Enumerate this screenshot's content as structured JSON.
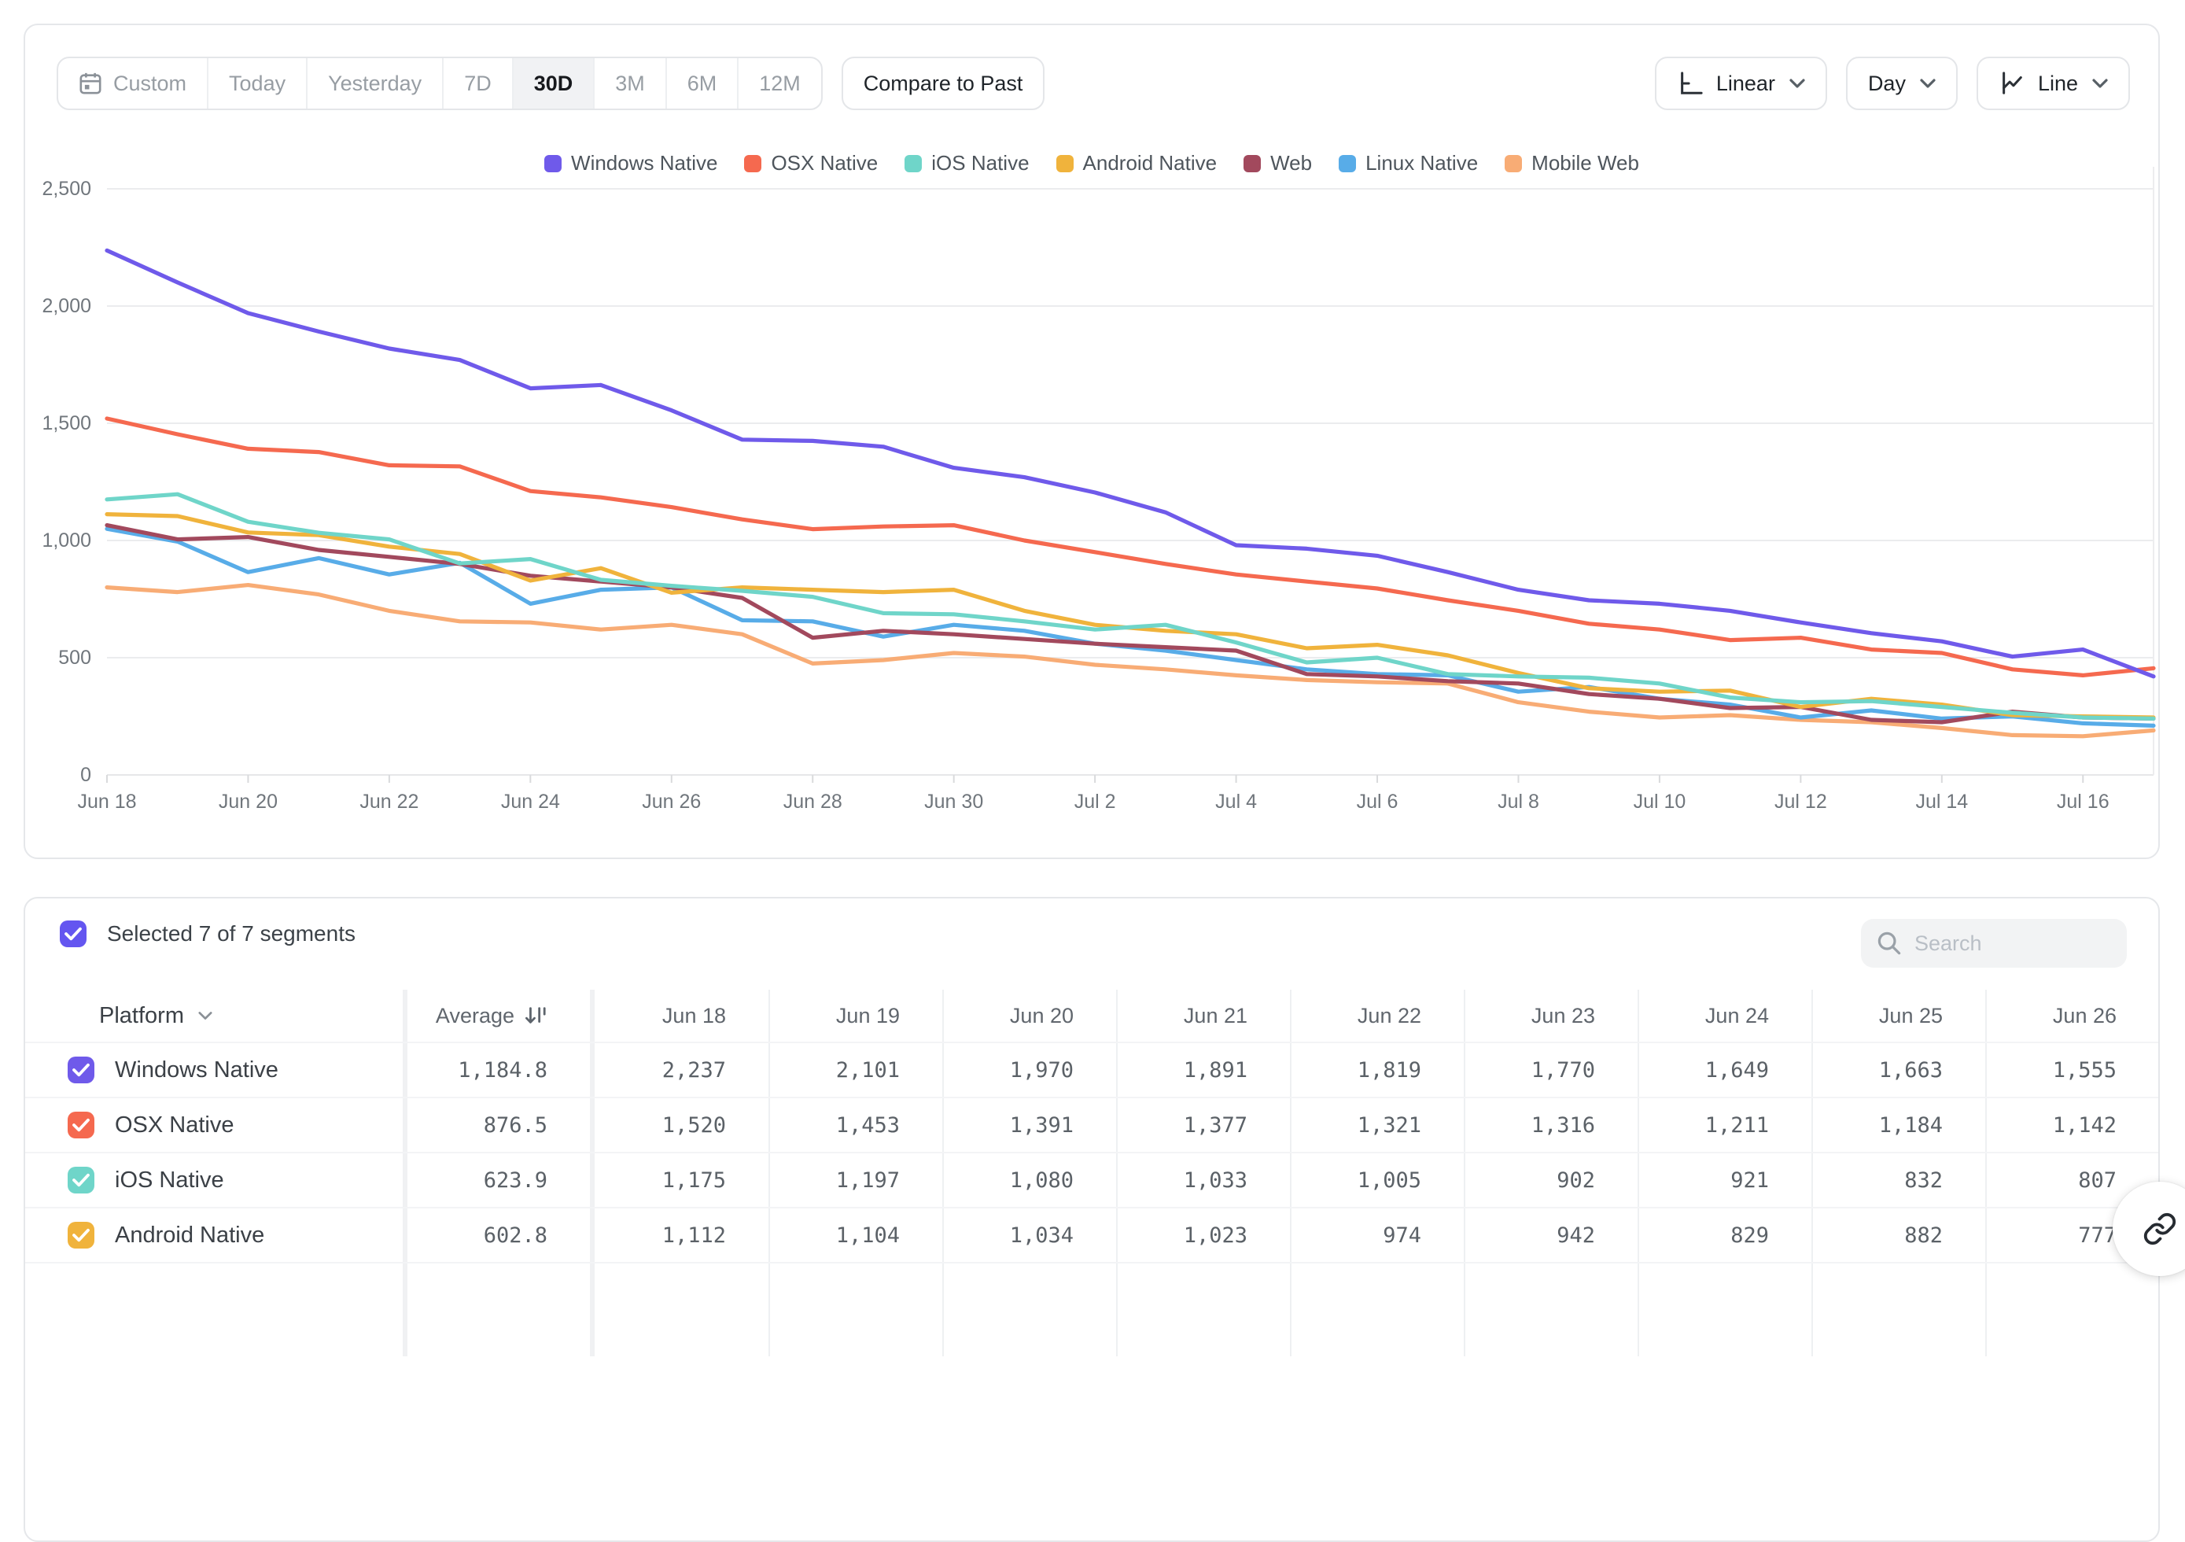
{
  "toolbar": {
    "date_ranges": [
      "Custom",
      "Today",
      "Yesterday",
      "7D",
      "30D",
      "3M",
      "6M",
      "12M"
    ],
    "selected_range": "30D",
    "compare_label": "Compare to Past",
    "scale_label": "Linear",
    "interval_label": "Day",
    "chart_type_label": "Line"
  },
  "chart_data": {
    "type": "line",
    "title": "",
    "xlabel": "",
    "ylabel": "",
    "ylim": [
      0,
      2500
    ],
    "grid": true,
    "legend_position": "top",
    "x": [
      "Jun 18",
      "Jun 19",
      "Jun 20",
      "Jun 21",
      "Jun 22",
      "Jun 23",
      "Jun 24",
      "Jun 25",
      "Jun 26",
      "Jun 27",
      "Jun 28",
      "Jun 29",
      "Jun 30",
      "Jul 1",
      "Jul 2",
      "Jul 3",
      "Jul 4",
      "Jul 5",
      "Jul 6",
      "Jul 7",
      "Jul 8",
      "Jul 9",
      "Jul 10",
      "Jul 11",
      "Jul 12",
      "Jul 13",
      "Jul 14",
      "Jul 15",
      "Jul 16",
      "Jul 17"
    ],
    "x_tick_step": 2,
    "y_ticks": [
      {
        "v": 0,
        "label": "0"
      },
      {
        "v": 500,
        "label": "500"
      },
      {
        "v": 1000,
        "label": "1,000"
      },
      {
        "v": 1500,
        "label": "1,500"
      },
      {
        "v": 2000,
        "label": "2,000"
      },
      {
        "v": 2500,
        "label": "2,500"
      }
    ],
    "series": [
      {
        "name": "Windows Native",
        "color": "#6F5AEA",
        "values": [
          2237,
          2101,
          1970,
          1891,
          1819,
          1770,
          1649,
          1663,
          1555,
          1430,
          1425,
          1400,
          1310,
          1270,
          1205,
          1120,
          980,
          965,
          935,
          865,
          790,
          745,
          730,
          700,
          650,
          605,
          570,
          505,
          535,
          420
        ]
      },
      {
        "name": "OSX Native",
        "color": "#F5694F",
        "values": [
          1520,
          1453,
          1391,
          1377,
          1321,
          1316,
          1211,
          1184,
          1142,
          1090,
          1048,
          1060,
          1065,
          1000,
          950,
          900,
          855,
          825,
          795,
          745,
          700,
          645,
          620,
          575,
          585,
          535,
          520,
          450,
          425,
          455
        ]
      },
      {
        "name": "iOS Native",
        "color": "#6FD5C9",
        "values": [
          1175,
          1197,
          1080,
          1033,
          1005,
          902,
          921,
          832,
          807,
          785,
          760,
          690,
          685,
          655,
          620,
          640,
          565,
          480,
          500,
          430,
          420,
          415,
          390,
          330,
          310,
          315,
          290,
          265,
          245,
          240
        ]
      },
      {
        "name": "Android Native",
        "color": "#F0B33C",
        "values": [
          1112,
          1104,
          1034,
          1023,
          974,
          942,
          829,
          882,
          777,
          800,
          790,
          780,
          790,
          700,
          640,
          615,
          600,
          540,
          555,
          510,
          435,
          370,
          355,
          360,
          290,
          325,
          300,
          255,
          250,
          245
        ]
      },
      {
        "name": "Web",
        "color": "#A2495D",
        "values": [
          1065,
          1005,
          1015,
          960,
          930,
          900,
          850,
          825,
          800,
          755,
          585,
          615,
          600,
          580,
          560,
          545,
          530,
          430,
          420,
          400,
          390,
          345,
          325,
          285,
          290,
          235,
          225,
          270,
          245,
          240
        ]
      },
      {
        "name": "Linux Native",
        "color": "#58ACE8",
        "values": [
          1050,
          995,
          865,
          925,
          855,
          905,
          730,
          790,
          800,
          660,
          655,
          590,
          640,
          615,
          560,
          530,
          490,
          450,
          430,
          425,
          355,
          375,
          325,
          300,
          245,
          275,
          240,
          250,
          220,
          210
        ]
      },
      {
        "name": "Mobile Web",
        "color": "#F8AC75",
        "values": [
          800,
          780,
          810,
          770,
          700,
          655,
          650,
          620,
          640,
          600,
          475,
          490,
          520,
          505,
          470,
          450,
          425,
          405,
          395,
          390,
          310,
          270,
          245,
          255,
          235,
          225,
          200,
          170,
          165,
          190
        ]
      }
    ]
  },
  "segments_panel": {
    "summary": "Selected 7 of 7 segments",
    "select_all_checked": true,
    "select_all_color": "#6456F0",
    "search_placeholder": "Search"
  },
  "table": {
    "platform_header": "Platform",
    "average_header": "Average",
    "date_columns": [
      "Jun 18",
      "Jun 19",
      "Jun 20",
      "Jun 21",
      "Jun 22",
      "Jun 23",
      "Jun 24",
      "Jun 25",
      "Jun 26"
    ],
    "rows": [
      {
        "platform": "Windows Native",
        "color": "#6F5AEA",
        "checked": true,
        "average": "1,184.8",
        "values": [
          "2,237",
          "2,101",
          "1,970",
          "1,891",
          "1,819",
          "1,770",
          "1,649",
          "1,663",
          "1,555"
        ]
      },
      {
        "platform": "OSX Native",
        "color": "#F5694F",
        "checked": true,
        "average": "876.5",
        "values": [
          "1,520",
          "1,453",
          "1,391",
          "1,377",
          "1,321",
          "1,316",
          "1,211",
          "1,184",
          "1,142"
        ]
      },
      {
        "platform": "iOS Native",
        "color": "#6FD5C9",
        "checked": true,
        "average": "623.9",
        "values": [
          "1,175",
          "1,197",
          "1,080",
          "1,033",
          "1,005",
          "902",
          "921",
          "832",
          "807"
        ]
      },
      {
        "platform": "Android Native",
        "color": "#F0B33C",
        "checked": true,
        "average": "602.8",
        "values": [
          "1,112",
          "1,104",
          "1,034",
          "1,023",
          "974",
          "942",
          "829",
          "882",
          "777"
        ]
      }
    ]
  }
}
